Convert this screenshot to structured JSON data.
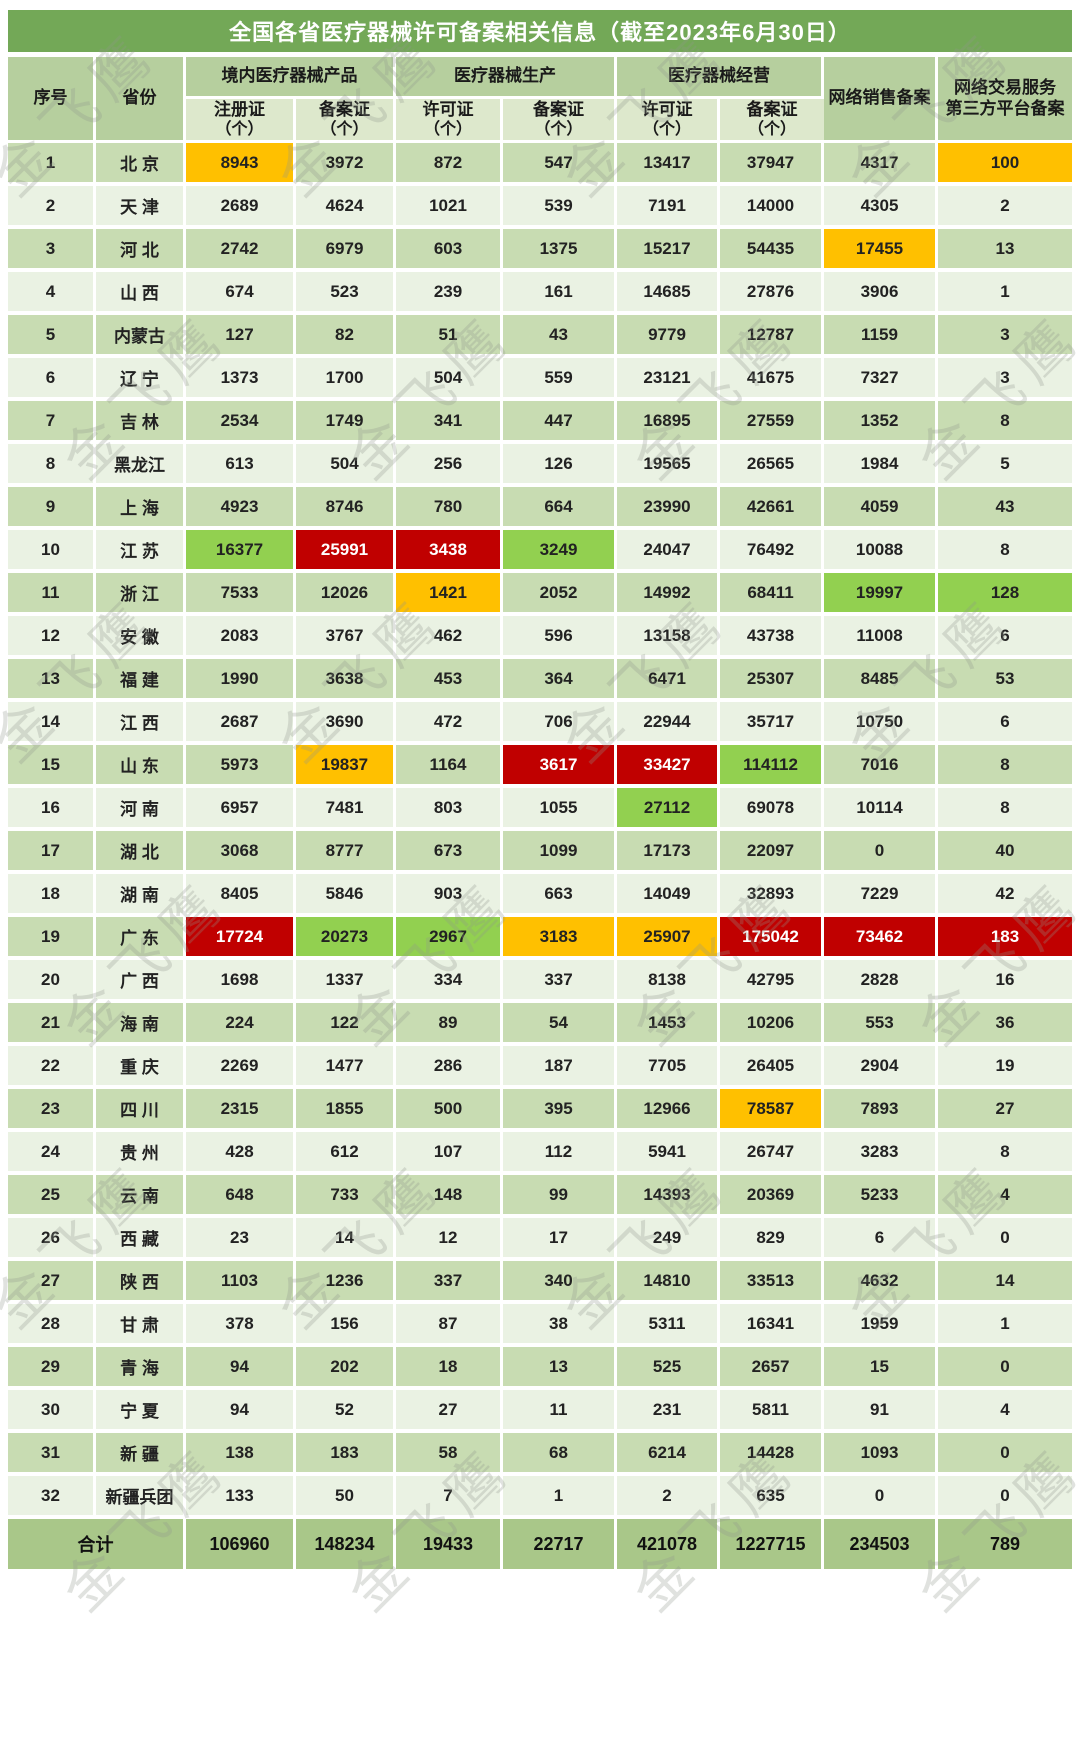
{
  "watermark": {
    "text": "金飞鹰"
  },
  "colors": {
    "title_bg": "#73a857",
    "header_bg": "#b6cf9e",
    "header_sub_bg": "#dde8cc",
    "row_odd": "#c8dcb2",
    "row_even": "#eaf2e3",
    "total_bg": "#a9c789",
    "hl_orange": "#ffc000",
    "hl_red": "#c00000",
    "hl_green": "#92d050",
    "text_dark": "#222222",
    "text_white": "#ffffff"
  },
  "chart_data": {
    "type": "table",
    "title": "全国各省医疗器械许可备案相关信息（截至2023年6月30日）",
    "header": {
      "serial": "序号",
      "province": "省份",
      "group_domestic": "境内医疗器械产品",
      "group_production": "医疗器械生产",
      "group_operation": "医疗器械经营",
      "sub_registration": "注册证",
      "sub_filing": "备案证",
      "sub_license": "许可证",
      "unit": "（个）",
      "online_sales": "网络销售备案",
      "platform_line1": "网络交易服务",
      "platform_line2": "第三方平台备案"
    },
    "value_columns": [
      "境内医疗器械产品-注册证（个）",
      "境内医疗器械产品-备案证（个）",
      "医疗器械生产-许可证（个）",
      "医疗器械生产-备案证（个）",
      "医疗器械经营-许可证（个）",
      "医疗器械经营-备案证（个）",
      "网络销售备案",
      "网络交易服务第三方平台备案"
    ],
    "highlight_legend": {
      "orange": "#ffc000",
      "red": "#c00000",
      "green": "#92d050"
    },
    "rows": [
      {
        "no": 1,
        "province": "北 京",
        "values": [
          8943,
          3972,
          872,
          547,
          13417,
          37947,
          4317,
          100
        ],
        "highlights": {
          "0": "orange",
          "7": "orange"
        }
      },
      {
        "no": 2,
        "province": "天 津",
        "values": [
          2689,
          4624,
          1021,
          539,
          7191,
          14000,
          4305,
          2
        ]
      },
      {
        "no": 3,
        "province": "河 北",
        "values": [
          2742,
          6979,
          603,
          1375,
          15217,
          54435,
          17455,
          13
        ],
        "highlights": {
          "6": "orange"
        }
      },
      {
        "no": 4,
        "province": "山 西",
        "values": [
          674,
          523,
          239,
          161,
          14685,
          27876,
          3906,
          1
        ]
      },
      {
        "no": 5,
        "province": "内蒙古",
        "values": [
          127,
          82,
          51,
          43,
          9779,
          12787,
          1159,
          3
        ]
      },
      {
        "no": 6,
        "province": "辽 宁",
        "values": [
          1373,
          1700,
          504,
          559,
          23121,
          41675,
          7327,
          3
        ]
      },
      {
        "no": 7,
        "province": "吉 林",
        "values": [
          2534,
          1749,
          341,
          447,
          16895,
          27559,
          1352,
          8
        ]
      },
      {
        "no": 8,
        "province": "黑龙江",
        "values": [
          613,
          504,
          256,
          126,
          19565,
          26565,
          1984,
          5
        ]
      },
      {
        "no": 9,
        "province": "上 海",
        "values": [
          4923,
          8746,
          780,
          664,
          23990,
          42661,
          4059,
          43
        ]
      },
      {
        "no": 10,
        "province": "江 苏",
        "values": [
          16377,
          25991,
          3438,
          3249,
          24047,
          76492,
          10088,
          8
        ],
        "highlights": {
          "0": "green",
          "1": "red",
          "2": "red",
          "3": "green"
        }
      },
      {
        "no": 11,
        "province": "浙 江",
        "values": [
          7533,
          12026,
          1421,
          2052,
          14992,
          68411,
          19997,
          128
        ],
        "highlights": {
          "2": "orange",
          "6": "green",
          "7": "green"
        }
      },
      {
        "no": 12,
        "province": "安 徽",
        "values": [
          2083,
          3767,
          462,
          596,
          13158,
          43738,
          11008,
          6
        ]
      },
      {
        "no": 13,
        "province": "福 建",
        "values": [
          1990,
          3638,
          453,
          364,
          6471,
          25307,
          8485,
          53
        ]
      },
      {
        "no": 14,
        "province": "江 西",
        "values": [
          2687,
          3690,
          472,
          706,
          22944,
          35717,
          10750,
          6
        ]
      },
      {
        "no": 15,
        "province": "山 东",
        "values": [
          5973,
          19837,
          1164,
          3617,
          33427,
          114112,
          7016,
          8
        ],
        "highlights": {
          "1": "orange",
          "3": "red",
          "4": "red",
          "5": "green"
        }
      },
      {
        "no": 16,
        "province": "河 南",
        "values": [
          6957,
          7481,
          803,
          1055,
          27112,
          69078,
          10114,
          8
        ],
        "highlights": {
          "4": "green"
        }
      },
      {
        "no": 17,
        "province": "湖 北",
        "values": [
          3068,
          8777,
          673,
          1099,
          17173,
          22097,
          0,
          40
        ]
      },
      {
        "no": 18,
        "province": "湖 南",
        "values": [
          8405,
          5846,
          903,
          663,
          14049,
          32893,
          7229,
          42
        ]
      },
      {
        "no": 19,
        "province": "广 东",
        "values": [
          17724,
          20273,
          2967,
          3183,
          25907,
          175042,
          73462,
          183
        ],
        "highlights": {
          "0": "red",
          "1": "green",
          "2": "green",
          "3": "orange",
          "4": "orange",
          "5": "red",
          "6": "red",
          "7": "red"
        }
      },
      {
        "no": 20,
        "province": "广 西",
        "values": [
          1698,
          1337,
          334,
          337,
          8138,
          42795,
          2828,
          16
        ]
      },
      {
        "no": 21,
        "province": "海 南",
        "values": [
          224,
          122,
          89,
          54,
          1453,
          10206,
          553,
          36
        ]
      },
      {
        "no": 22,
        "province": "重 庆",
        "values": [
          2269,
          1477,
          286,
          187,
          7705,
          26405,
          2904,
          19
        ]
      },
      {
        "no": 23,
        "province": "四 川",
        "values": [
          2315,
          1855,
          500,
          395,
          12966,
          78587,
          7893,
          27
        ],
        "highlights": {
          "5": "orange"
        }
      },
      {
        "no": 24,
        "province": "贵 州",
        "values": [
          428,
          612,
          107,
          112,
          5941,
          26747,
          3283,
          8
        ]
      },
      {
        "no": 25,
        "province": "云 南",
        "values": [
          648,
          733,
          148,
          99,
          14393,
          20369,
          5233,
          4
        ]
      },
      {
        "no": 26,
        "province": "西 藏",
        "values": [
          23,
          14,
          12,
          17,
          249,
          829,
          6,
          0
        ]
      },
      {
        "no": 27,
        "province": "陕 西",
        "values": [
          1103,
          1236,
          337,
          340,
          14810,
          33513,
          4632,
          14
        ]
      },
      {
        "no": 28,
        "province": "甘 肃",
        "values": [
          378,
          156,
          87,
          38,
          5311,
          16341,
          1959,
          1
        ]
      },
      {
        "no": 29,
        "province": "青 海",
        "values": [
          94,
          202,
          18,
          13,
          525,
          2657,
          15,
          0
        ]
      },
      {
        "no": 30,
        "province": "宁 夏",
        "values": [
          94,
          52,
          27,
          11,
          231,
          5811,
          91,
          4
        ]
      },
      {
        "no": 31,
        "province": "新 疆",
        "values": [
          138,
          183,
          58,
          68,
          6214,
          14428,
          1093,
          0
        ]
      },
      {
        "no": 32,
        "province": "新疆兵团",
        "values": [
          133,
          50,
          7,
          1,
          2,
          635,
          0,
          0
        ]
      }
    ],
    "total": {
      "label": "合计",
      "values": [
        106960,
        148234,
        19433,
        22717,
        421078,
        1227715,
        234503,
        789
      ]
    }
  }
}
